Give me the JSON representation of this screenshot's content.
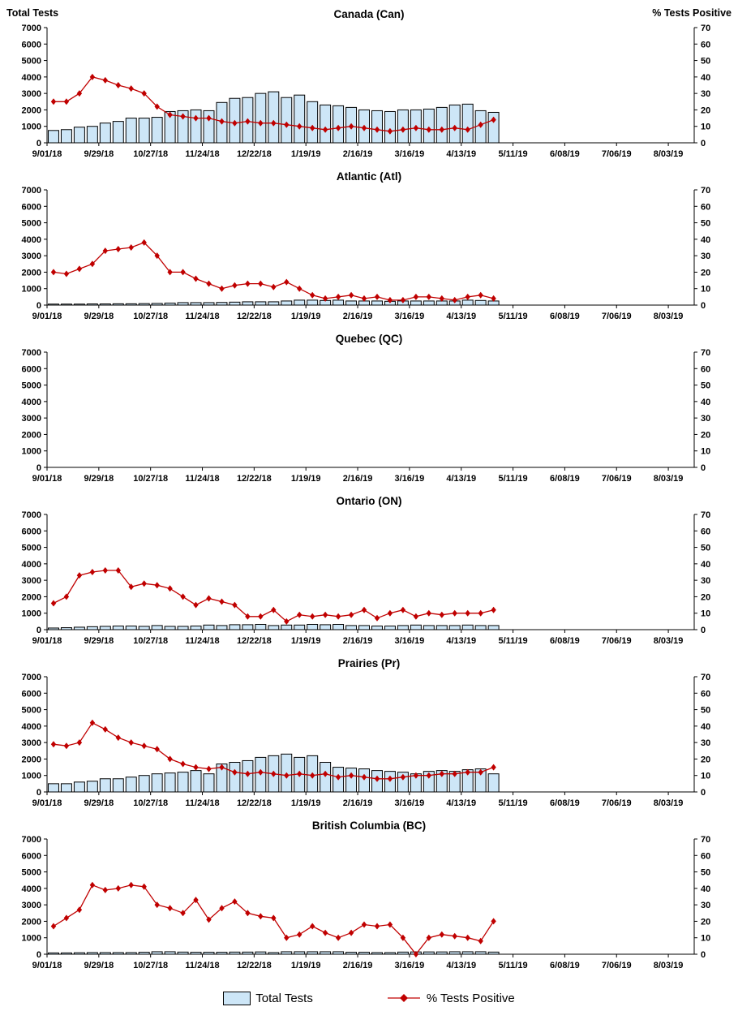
{
  "page": {
    "colors": {
      "bar_fill": "#CDE6F7",
      "bar_border": "#000000",
      "line": "#C00000",
      "axis": "#000000"
    }
  },
  "legend": {
    "items": [
      {
        "label": "Total Tests",
        "swatch": "bar"
      },
      {
        "label": "% Tests Positive",
        "swatch": "line-diamond"
      }
    ]
  },
  "chart_data": {
    "type": "bar-line-combo",
    "x_tick_labels": [
      "9/01/18",
      "9/29/18",
      "10/27/18",
      "11/24/18",
      "12/22/18",
      "1/19/19",
      "2/16/19",
      "3/16/19",
      "4/13/19",
      "5/11/19",
      "6/08/19",
      "7/06/19",
      "8/03/19"
    ],
    "weeks_per_tick": 4,
    "weeks_span": 50,
    "left_axis": {
      "title": "Total Tests",
      "ylim": [
        0,
        7000
      ],
      "tick_step": 1000
    },
    "right_axis": {
      "title": "% Tests Positive",
      "ylim": [
        0,
        70
      ],
      "tick_step": 10
    },
    "legend_position": "bottom",
    "grid": false,
    "charts": [
      {
        "title": "Canada (Can)",
        "total_tests": [
          750,
          800,
          950,
          1000,
          1200,
          1300,
          1500,
          1500,
          1550,
          1900,
          1950,
          2000,
          1950,
          2450,
          2700,
          2750,
          3000,
          3100,
          2750,
          2900,
          2500,
          2300,
          2250,
          2150,
          2000,
          1950,
          1900,
          2000,
          2000,
          2050,
          2150,
          2300,
          2350,
          1950,
          1850
        ],
        "pct_positive": [
          25,
          25,
          30,
          40,
          38,
          35,
          33,
          30,
          22,
          17,
          16,
          15,
          15,
          13,
          12,
          13,
          12,
          12,
          11,
          10,
          9,
          8,
          9,
          10,
          9,
          8,
          7,
          8,
          9,
          8,
          8,
          9,
          8,
          11,
          14
        ]
      },
      {
        "title": "Atlantic (Atl)",
        "total_tests": [
          60,
          60,
          60,
          70,
          70,
          80,
          80,
          90,
          100,
          120,
          150,
          150,
          150,
          160,
          180,
          200,
          200,
          200,
          250,
          300,
          300,
          280,
          300,
          250,
          250,
          250,
          230,
          250,
          250,
          250,
          250,
          250,
          300,
          280,
          250
        ],
        "pct_positive": [
          20,
          19,
          22,
          25,
          33,
          34,
          35,
          38,
          30,
          20,
          20,
          16,
          13,
          10,
          12,
          13,
          13,
          11,
          14,
          10,
          6,
          4,
          5,
          6,
          4,
          5,
          3,
          3,
          5,
          5,
          4,
          3,
          5,
          6,
          4
        ]
      },
      {
        "title": "Quebec (QC)",
        "total_tests": [],
        "pct_positive": []
      },
      {
        "title": "Ontario (ON)",
        "total_tests": [
          100,
          120,
          150,
          180,
          200,
          220,
          220,
          200,
          250,
          200,
          200,
          220,
          280,
          250,
          300,
          300,
          320,
          250,
          280,
          280,
          320,
          300,
          320,
          250,
          250,
          220,
          220,
          250,
          280,
          250,
          250,
          250,
          280,
          250,
          250
        ],
        "pct_positive": [
          16,
          20,
          33,
          35,
          36,
          36,
          26,
          28,
          27,
          25,
          20,
          15,
          19,
          17,
          15,
          8,
          8,
          12,
          5,
          9,
          8,
          9,
          8,
          9,
          12,
          7,
          10,
          12,
          8,
          10,
          9,
          10,
          10,
          10,
          12
        ]
      },
      {
        "title": "Prairies (Pr)",
        "total_tests": [
          500,
          500,
          600,
          650,
          800,
          800,
          900,
          1000,
          1100,
          1150,
          1200,
          1300,
          1100,
          1700,
          1800,
          1900,
          2100,
          2200,
          2300,
          2100,
          2200,
          1800,
          1500,
          1450,
          1400,
          1300,
          1250,
          1200,
          1100,
          1250,
          1300,
          1250,
          1350,
          1400,
          1100
        ],
        "pct_positive": [
          29,
          28,
          30,
          42,
          38,
          33,
          30,
          28,
          26,
          20,
          17,
          15,
          14,
          15,
          12,
          11,
          12,
          11,
          10,
          11,
          10,
          11,
          9,
          10,
          9,
          8,
          8,
          9,
          10,
          10,
          11,
          11,
          12,
          12,
          15
        ]
      },
      {
        "title": "British Columbia (BC)",
        "total_tests": [
          80,
          80,
          90,
          100,
          100,
          100,
          100,
          120,
          150,
          150,
          130,
          120,
          120,
          120,
          130,
          130,
          140,
          100,
          150,
          150,
          150,
          150,
          150,
          120,
          120,
          100,
          100,
          130,
          140,
          140,
          140,
          150,
          150,
          150,
          130
        ],
        "pct_positive": [
          17,
          22,
          27,
          42,
          39,
          40,
          42,
          41,
          30,
          28,
          25,
          33,
          21,
          28,
          32,
          25,
          23,
          22,
          10,
          12,
          17,
          13,
          10,
          13,
          18,
          17,
          18,
          10,
          0,
          10,
          12,
          11,
          10,
          8,
          20
        ]
      }
    ]
  }
}
